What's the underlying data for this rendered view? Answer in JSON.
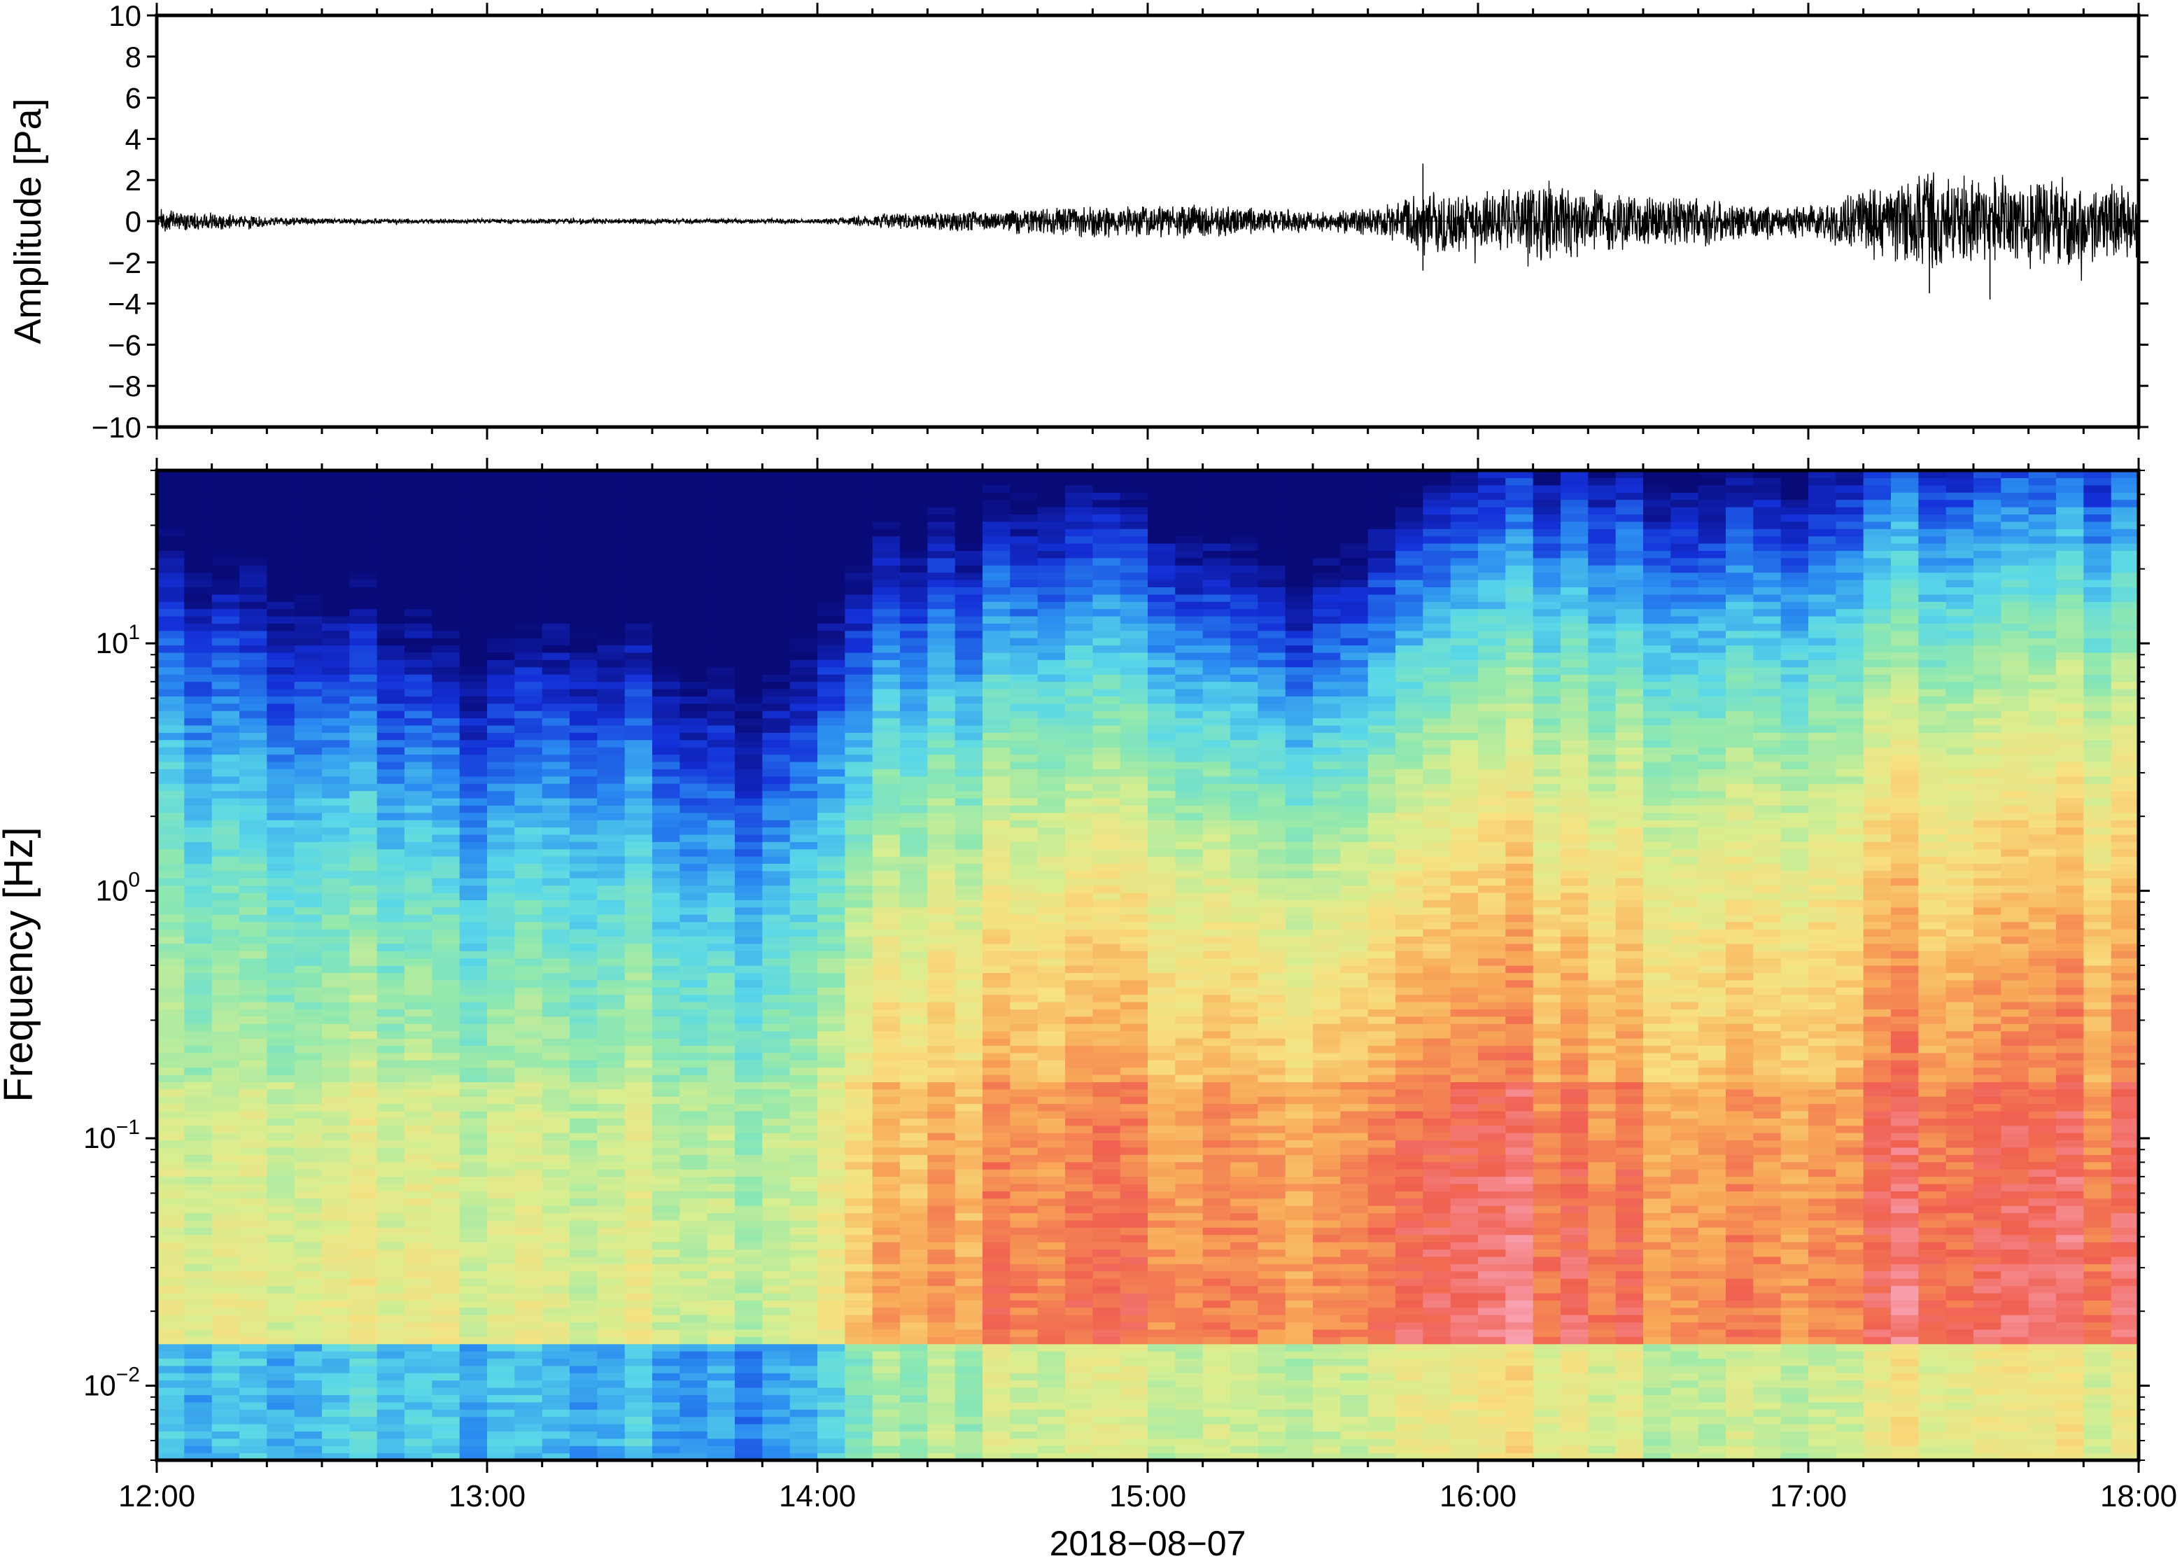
{
  "chart_data": [
    {
      "type": "line",
      "panel": "waveform",
      "title": "",
      "xlabel": "",
      "ylabel": "Amplitude [Pa]",
      "ylim": [
        -10,
        10
      ],
      "yticks": [
        "10",
        "8",
        "6",
        "4",
        "2",
        "0",
        "−2",
        "−4",
        "−6",
        "−8",
        "−10"
      ],
      "yticks_values": [
        10,
        8,
        6,
        4,
        2,
        0,
        -2,
        -4,
        -6,
        -8,
        -10
      ],
      "xlim": [
        "12:00",
        "18:00"
      ],
      "line_color": "#000000",
      "envelope": {
        "x": [
          "12:00",
          "12:30",
          "13:00",
          "13:30",
          "14:00",
          "14:15",
          "14:30",
          "14:45",
          "15:00",
          "15:15",
          "15:30",
          "15:45",
          "15:50",
          "16:00",
          "16:10",
          "16:30",
          "16:50",
          "17:00",
          "17:10",
          "17:20",
          "17:40",
          "18:00"
        ],
        "amplitude": [
          0.6,
          0.15,
          0.12,
          0.15,
          0.12,
          0.4,
          0.6,
          0.8,
          0.9,
          0.8,
          0.5,
          1.0,
          1.8,
          1.4,
          2.2,
          1.4,
          1.0,
          0.8,
          1.8,
          2.6,
          2.4,
          2.0
        ]
      },
      "peaks": [
        {
          "x": "15:50",
          "value": 2.8
        },
        {
          "x": "15:50",
          "value": -2.4
        },
        {
          "x": "17:33",
          "value": -3.8
        },
        {
          "x": "17:22",
          "value": -3.5
        }
      ]
    },
    {
      "type": "heatmap",
      "panel": "spectrogram",
      "title": "",
      "xlabel": "2018−08−07",
      "ylabel": "Frequency [Hz]",
      "yscale": "log",
      "ylim": [
        0.005,
        50
      ],
      "yticks": [
        {
          "base": "10",
          "exp": "1",
          "value": 10
        },
        {
          "base": "10",
          "exp": "0",
          "value": 1
        },
        {
          "base": "10",
          "exp": "−1",
          "value": 0.1
        },
        {
          "base": "10",
          "exp": "−2",
          "value": 0.01
        }
      ],
      "xticks": [
        "12:00",
        "13:00",
        "14:00",
        "15:00",
        "16:00",
        "17:00",
        "18:00"
      ],
      "colormap": "rainbow (dark blue = low power, red/pink = high power)",
      "colors": [
        "#080a78",
        "#1430d8",
        "#2a8cf0",
        "#5ad8e8",
        "#8ee8b0",
        "#d8ee90",
        "#f8e080",
        "#f8a858",
        "#f06050",
        "#f8a0b0"
      ],
      "time_profile": {
        "x": [
          "12:00",
          "12:30",
          "13:00",
          "13:15",
          "13:30",
          "13:45",
          "14:00",
          "14:15",
          "14:30",
          "15:00",
          "15:15",
          "15:30",
          "15:45",
          "16:00",
          "16:15",
          "16:30",
          "17:00",
          "17:10",
          "17:30",
          "18:00"
        ],
        "high_freq_level": [
          0.45,
          0.3,
          0.15,
          0.25,
          0.18,
          0.08,
          0.18,
          0.4,
          0.45,
          0.5,
          0.4,
          0.3,
          0.5,
          0.62,
          0.62,
          0.58,
          0.55,
          0.66,
          0.68,
          0.68
        ],
        "low_freq_level": [
          0.6,
          0.58,
          0.55,
          0.55,
          0.55,
          0.5,
          0.55,
          0.75,
          0.8,
          0.85,
          0.85,
          0.8,
          0.9,
          0.95,
          0.9,
          0.85,
          0.8,
          0.88,
          0.9,
          0.88
        ]
      }
    }
  ]
}
